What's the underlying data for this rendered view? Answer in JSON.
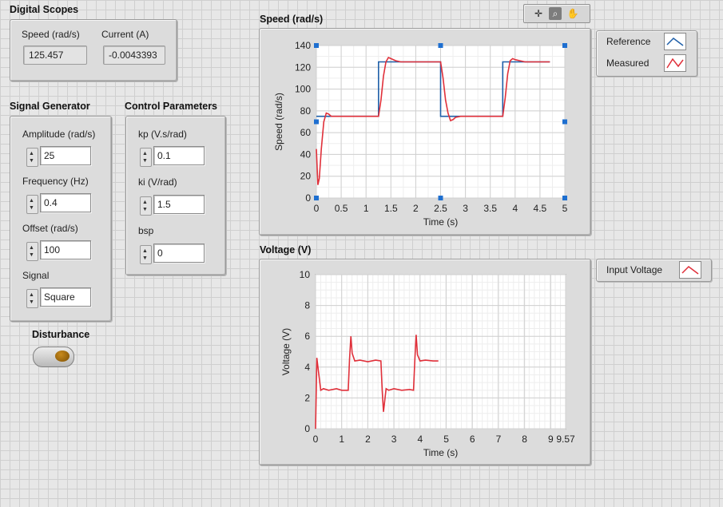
{
  "digital_scopes": {
    "title": "Digital Scopes",
    "speed_label": "Speed (rad/s)",
    "speed_value": "125.457",
    "current_label": "Current (A)",
    "current_value": "-0.0043393"
  },
  "signal_generator": {
    "title": "Signal Generator",
    "amplitude_label": "Amplitude (rad/s)",
    "amplitude_value": "25",
    "frequency_label": "Frequency (Hz)",
    "frequency_value": "0.4",
    "offset_label": "Offset (rad/s)",
    "offset_value": "100",
    "signal_label": "Signal",
    "signal_value": "Square"
  },
  "control_parameters": {
    "title": "Control Parameters",
    "kp_label": "kp (V.s/rad)",
    "kp_value": "0.1",
    "ki_label": "ki (V/rad)",
    "ki_value": "1.5",
    "bsp_label": "bsp",
    "bsp_value": "0"
  },
  "disturbance": {
    "label": "Disturbance",
    "state": "off"
  },
  "graph_toolbar": {
    "tools": [
      "cursor-move-icon",
      "zoom-icon",
      "pan-hand-icon"
    ],
    "active_tool": "zoom-icon"
  },
  "colors": {
    "reference": "#1f5fa8",
    "measured": "#e0303a",
    "voltage": "#e0303a"
  },
  "chart_data": [
    {
      "type": "line",
      "title": "Speed (rad/s)",
      "xlabel": "Time (s)",
      "ylabel": "Speed (rad/s)",
      "xlim": [
        0,
        5
      ],
      "ylim": [
        0,
        140
      ],
      "xticks": [
        "0",
        "0.5",
        "1",
        "1.5",
        "2",
        "2.5",
        "3",
        "3.5",
        "4",
        "4.5",
        "5"
      ],
      "yticks": [
        "0",
        "20",
        "40",
        "60",
        "80",
        "100",
        "120",
        "140"
      ],
      "grid": true,
      "legend_position": "right",
      "series": [
        {
          "name": "Reference",
          "x": [
            0,
            1.25,
            1.25,
            2.5,
            2.5,
            3.75,
            3.75,
            4.7
          ],
          "y": [
            75,
            75,
            125,
            125,
            75,
            75,
            125,
            125
          ]
        },
        {
          "name": "Measured",
          "x": [
            0,
            0.03,
            0.06,
            0.1,
            0.15,
            0.2,
            0.25,
            0.3,
            0.4,
            0.6,
            0.8,
            1.0,
            1.25,
            1.3,
            1.35,
            1.4,
            1.45,
            1.5,
            1.6,
            1.7,
            1.9,
            2.2,
            2.5,
            2.55,
            2.6,
            2.65,
            2.7,
            2.75,
            2.8,
            2.9,
            3.0,
            3.3,
            3.75,
            3.8,
            3.85,
            3.9,
            3.95,
            4.0,
            4.1,
            4.2,
            4.4,
            4.7
          ],
          "y": [
            45,
            12,
            18,
            45,
            70,
            78,
            77,
            75,
            75,
            75,
            75,
            75,
            75,
            90,
            112,
            125,
            129,
            128,
            126,
            125,
            125,
            125,
            125,
            110,
            90,
            78,
            71,
            72,
            74,
            75,
            75,
            75,
            75,
            92,
            114,
            126,
            128,
            127,
            126,
            125,
            125,
            125
          ]
        }
      ]
    },
    {
      "type": "line",
      "title": "Voltage (V)",
      "xlabel": "Time (s)",
      "ylabel": "Voltage (V)",
      "xlim": [
        0,
        9.57
      ],
      "ylim": [
        0,
        10
      ],
      "xticks": [
        "0",
        "1",
        "2",
        "3",
        "4",
        "5",
        "6",
        "7",
        "8",
        "9",
        "9.57"
      ],
      "yticks": [
        "0",
        "2",
        "4",
        "6",
        "8",
        "10"
      ],
      "grid": true,
      "legend_position": "right",
      "series": [
        {
          "name": "Input Voltage",
          "x": [
            0,
            0.05,
            0.12,
            0.2,
            0.3,
            0.5,
            0.8,
            1.0,
            1.25,
            1.3,
            1.35,
            1.4,
            1.5,
            1.7,
            2.0,
            2.3,
            2.5,
            2.55,
            2.6,
            2.7,
            2.8,
            3.0,
            3.3,
            3.6,
            3.75,
            3.8,
            3.85,
            3.9,
            4.0,
            4.2,
            4.5,
            4.7
          ],
          "y": [
            0,
            4.6,
            3.6,
            2.5,
            2.6,
            2.5,
            2.6,
            2.5,
            2.5,
            4.5,
            6.0,
            4.9,
            4.4,
            4.45,
            4.35,
            4.45,
            4.4,
            2.5,
            1.1,
            2.6,
            2.5,
            2.6,
            2.5,
            2.55,
            2.5,
            4.5,
            6.1,
            4.8,
            4.4,
            4.45,
            4.4,
            4.4
          ]
        }
      ]
    }
  ]
}
